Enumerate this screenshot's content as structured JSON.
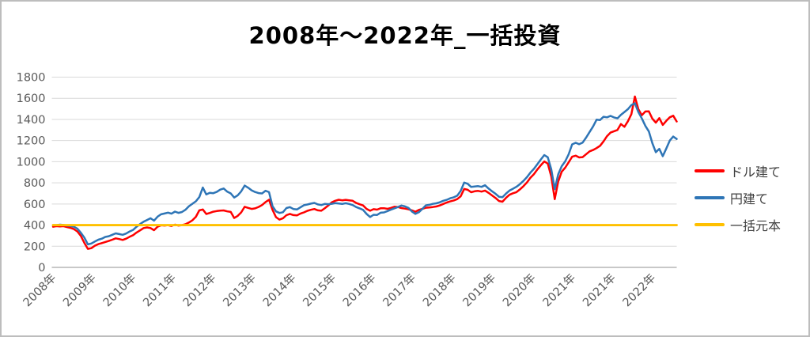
{
  "title": "2008年～2022年_一括投資",
  "legend": [
    {
      "key": "usd",
      "label": "ドル建て",
      "color": "#fe0000"
    },
    {
      "key": "jpy",
      "label": "円建て",
      "color": "#2e75b6"
    },
    {
      "key": "principal",
      "label": "一括元本",
      "color": "#ffc000"
    }
  ],
  "colors": {
    "gridline": "#d9d9d9",
    "axis_line": "#a6a6a6",
    "tick_label": "#595959",
    "title_text": "#000000"
  },
  "chart_data": {
    "type": "line",
    "title": "2008年～2022年_一括投資",
    "xlabel": "",
    "ylabel": "",
    "ylim": [
      0,
      1800
    ],
    "y_ticks": [
      0,
      200,
      400,
      600,
      800,
      1000,
      1200,
      1400,
      1600,
      1800
    ],
    "x_tick_labels": [
      "2008年",
      "2009年",
      "2010年",
      "2011年",
      "2012年",
      "2013年",
      "2014年",
      "2015年",
      "2016年",
      "2017年",
      "2018年",
      "2019年",
      "2020年",
      "2021年",
      "2021年",
      "2022年"
    ],
    "grid": true,
    "legend_position": "right",
    "sampling_note": "values estimated monthly from Jan 2008 to Dec 2022",
    "series": [
      {
        "name": "ドル建て",
        "key": "usd",
        "color": "#fe0000",
        "values": [
          385,
          390,
          387,
          390,
          382,
          374,
          362,
          340,
          298,
          232,
          175,
          182,
          205,
          220,
          230,
          240,
          250,
          262,
          275,
          268,
          260,
          272,
          290,
          305,
          330,
          350,
          372,
          378,
          372,
          352,
          385,
          398,
          396,
          400,
          392,
          404,
          396,
          400,
          408,
          424,
          445,
          478,
          540,
          548,
          505,
          515,
          527,
          533,
          537,
          539,
          530,
          525,
          467,
          487,
          520,
          573,
          563,
          553,
          558,
          572,
          590,
          618,
          640,
          545,
          475,
          452,
          465,
          494,
          506,
          495,
          492,
          509,
          520,
          535,
          545,
          552,
          540,
          536,
          560,
          585,
          615,
          630,
          640,
          635,
          639,
          635,
          630,
          610,
          597,
          586,
          553,
          536,
          551,
          546,
          559,
          560,
          554,
          563,
          574,
          571,
          561,
          556,
          550,
          540,
          526,
          544,
          553,
          564,
          567,
          571,
          576,
          586,
          600,
          614,
          624,
          633,
          646,
          673,
          742,
          734,
          711,
          720,
          724,
          717,
          727,
          705,
          681,
          657,
          628,
          621,
          658,
          687,
          701,
          712,
          738,
          768,
          803,
          847,
          882,
          926,
          966,
          1002,
          982,
          860,
          645,
          813,
          905,
          943,
          994,
          1047,
          1057,
          1040,
          1043,
          1071,
          1098,
          1111,
          1129,
          1150,
          1192,
          1242,
          1275,
          1288,
          1300,
          1356,
          1330,
          1382,
          1450,
          1617,
          1497,
          1439,
          1475,
          1476,
          1407,
          1370,
          1412,
          1348,
          1386,
          1420,
          1435,
          1380
        ]
      },
      {
        "name": "円建て",
        "key": "jpy",
        "color": "#2e75b6",
        "values": [
          400,
          400,
          404,
          401,
          396,
          392,
          385,
          366,
          328,
          282,
          218,
          226,
          245,
          262,
          272,
          288,
          295,
          308,
          322,
          315,
          308,
          320,
          340,
          355,
          385,
          410,
          432,
          448,
          465,
          442,
          480,
          502,
          510,
          518,
          508,
          528,
          516,
          524,
          545,
          578,
          602,
          625,
          665,
          755,
          690,
          706,
          702,
          714,
          736,
          746,
          716,
          700,
          661,
          682,
          719,
          774,
          754,
          729,
          713,
          703,
          700,
          725,
          712,
          580,
          530,
          515,
          522,
          561,
          570,
          552,
          548,
          568,
          588,
          595,
          603,
          610,
          596,
          590,
          600,
          598,
          602,
          608,
          605,
          600,
          607,
          600,
          590,
          571,
          558,
          544,
          505,
          477,
          498,
          496,
          517,
          520,
          533,
          546,
          559,
          571,
          585,
          577,
          563,
          529,
          506,
          522,
          553,
          587,
          592,
          601,
          606,
          616,
          630,
          639,
          654,
          663,
          678,
          723,
          802,
          791,
          761,
          765,
          769,
          762,
          777,
          746,
          721,
          697,
          668,
          664,
          698,
          727,
          744,
          763,
          788,
          818,
          853,
          897,
          932,
          976,
          1021,
          1063,
          1042,
          928,
          740,
          880,
          957,
          1003,
          1070,
          1164,
          1179,
          1165,
          1181,
          1228,
          1281,
          1334,
          1397,
          1394,
          1425,
          1420,
          1433,
          1419,
          1410,
          1444,
          1470,
          1497,
          1536,
          1553,
          1469,
          1409,
          1338,
          1286,
          1175,
          1090,
          1121,
          1052,
          1124,
          1200,
          1238,
          1215
        ]
      },
      {
        "name": "一括元本",
        "key": "principal",
        "color": "#ffc000",
        "constant": 400
      }
    ]
  }
}
